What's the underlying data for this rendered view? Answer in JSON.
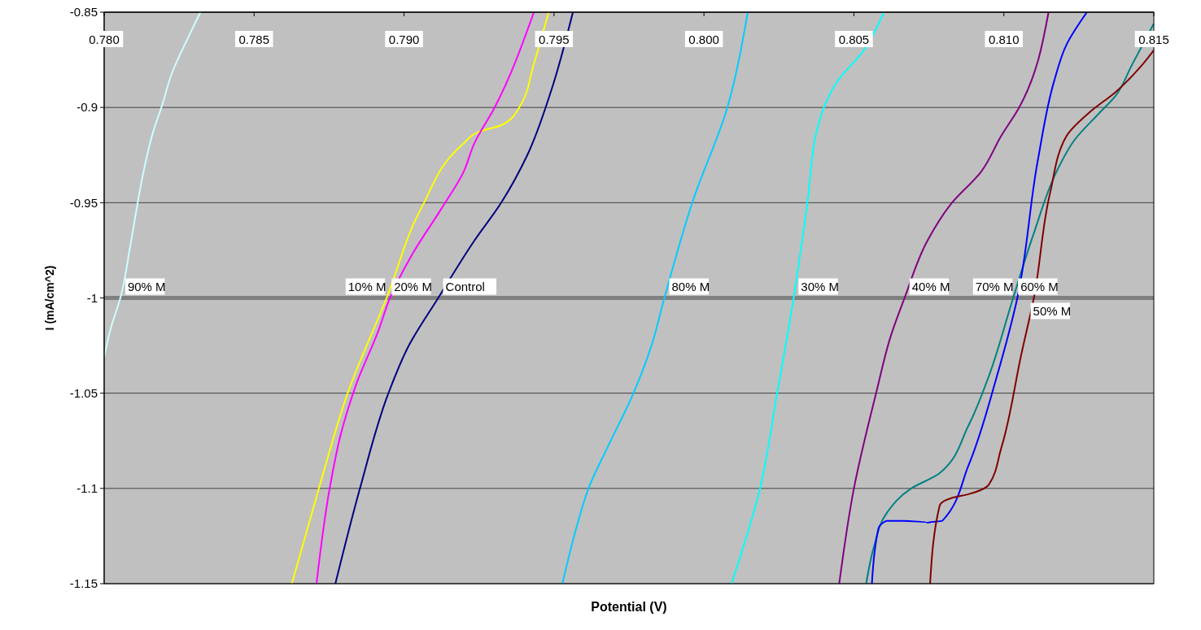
{
  "chart_data": {
    "type": "line",
    "xlabel": "Potential (V)",
    "ylabel": "I (mA/cm^2)",
    "xlim": [
      0.78,
      0.815
    ],
    "xticks": [
      {
        "value": 0.78,
        "label": "0.780"
      },
      {
        "value": 0.785,
        "label": "0.785"
      },
      {
        "value": 0.79,
        "label": "0.790"
      },
      {
        "value": 0.795,
        "label": "0.795"
      },
      {
        "value": 0.8,
        "label": "0.800"
      },
      {
        "value": 0.805,
        "label": "0.805"
      },
      {
        "value": 0.81,
        "label": "0.810"
      },
      {
        "value": 0.815,
        "label": "0.815"
      }
    ],
    "ylim": [
      -1.15,
      -0.85
    ],
    "yticks": [
      -1.15,
      -1.1,
      -1.05,
      -1,
      -0.95,
      -0.9,
      -0.85
    ],
    "grid": "y",
    "marker": "none",
    "line_style": "solid",
    "ref_lines": [
      {
        "axis": "y",
        "value": -1,
        "color": "#808080"
      }
    ],
    "series": [
      {
        "name": "90% M",
        "color": "#ccffff",
        "x": [
          0.78,
          0.78022,
          0.78054,
          0.7809,
          0.78131,
          0.78163,
          0.78191,
          0.78226,
          0.78281,
          0.78321
        ],
        "values": [
          -1.031,
          -1.016,
          -1.0,
          -0.97,
          -0.934,
          -0.913,
          -0.9,
          -0.882,
          -0.863,
          -0.85
        ]
      },
      {
        "name": "20% M",
        "color": "#ffff00",
        "x": [
          0.78626,
          0.78716,
          0.78812,
          0.78942,
          0.79057,
          0.79198,
          0.79247,
          0.79329,
          0.79384,
          0.79433,
          0.79482
        ],
        "values": [
          -1.15,
          -1.1,
          -1.05,
          -1.0,
          -0.953,
          -0.919,
          -0.913,
          -0.909,
          -0.9,
          -0.877,
          -0.85
        ]
      },
      {
        "name": "10% M",
        "color": "#ff00ff",
        "x": [
          0.78708,
          0.78752,
          0.7879,
          0.78839,
          0.78915,
          0.78953,
          0.79024,
          0.79125,
          0.79198,
          0.79234,
          0.79302,
          0.79433
        ],
        "values": [
          -1.15,
          -1.1,
          -1.071,
          -1.046,
          -1.017,
          -1.0,
          -0.978,
          -0.953,
          -0.934,
          -0.919,
          -0.9,
          -0.85
        ]
      },
      {
        "name": "Control",
        "color": "#000080",
        "x": [
          0.78771,
          0.78853,
          0.78948,
          0.79016,
          0.79114,
          0.79234,
          0.79324,
          0.79411,
          0.79493,
          0.79563
        ],
        "values": [
          -1.15,
          -1.1,
          -1.05,
          -1.025,
          -1.0,
          -0.97,
          -0.95,
          -0.925,
          -0.89,
          -0.85
        ]
      },
      {
        "name": "80% M",
        "color": "#00ccff",
        "x": [
          0.79528,
          0.79574,
          0.79615,
          0.79683,
          0.79765,
          0.79825,
          0.79868,
          0.79961,
          0.80078,
          0.80146
        ],
        "values": [
          -1.15,
          -1.121,
          -1.1,
          -1.077,
          -1.05,
          -1.025,
          -1.0,
          -0.95,
          -0.9,
          -0.85
        ]
      },
      {
        "name": "30% M",
        "color": "#00ffff",
        "x": [
          0.80092,
          0.80187,
          0.80244,
          0.80299,
          0.80345,
          0.80378,
          0.80405,
          0.80446,
          0.80528,
          0.806
        ],
        "values": [
          -1.15,
          -1.1,
          -1.05,
          -1.0,
          -0.95,
          -0.911,
          -0.898,
          -0.886,
          -0.871,
          -0.85
        ]
      },
      {
        "name": "40% M",
        "color": "#800080",
        "x": [
          0.80451,
          0.805,
          0.80574,
          0.80623,
          0.80669,
          0.80745,
          0.80827,
          0.80923,
          0.80991,
          0.81051,
          0.81149
        ],
        "values": [
          -1.15,
          -1.1,
          -1.05,
          -1.02,
          -1.0,
          -0.97,
          -0.95,
          -0.934,
          -0.915,
          -0.9,
          -0.85
        ]
      },
      {
        "name": "60% M",
        "color": "#008080",
        "x": [
          0.80541,
          0.80568,
          0.80609,
          0.80691,
          0.80786,
          0.80882,
          0.8095,
          0.81031,
          0.811,
          0.81181,
          0.81236,
          0.81318,
          0.81372,
          0.81426,
          0.815
        ],
        "values": [
          -1.15,
          -1.13,
          -1.113,
          -1.1,
          -1.092,
          -1.067,
          -1.041,
          -1.0,
          -0.966,
          -0.932,
          -0.917,
          -0.903,
          -0.894,
          -0.878,
          -0.856
        ]
      },
      {
        "name": "70% M",
        "color": "#0000ff",
        "x": [
          0.8056,
          0.80582,
          0.80609,
          0.80664,
          0.80745,
          0.80795,
          0.80882,
          0.80977,
          0.81045,
          0.81113,
          0.81168,
          0.81209,
          0.81277
        ],
        "values": [
          -1.15,
          -1.121,
          -1.117,
          -1.117,
          -1.118,
          -1.117,
          -1.088,
          -1.041,
          -1.0,
          -0.928,
          -0.886,
          -0.867,
          -0.85
        ]
      },
      {
        "name": "50% M",
        "color": "#800000",
        "x": [
          0.80754,
          0.80786,
          0.80827,
          0.80882,
          0.8095,
          0.80991,
          0.81059,
          0.811,
          0.81154,
          0.81209,
          0.8129,
          0.81372,
          0.81454,
          0.815
        ],
        "values": [
          -1.15,
          -1.109,
          -1.105,
          -1.103,
          -1.098,
          -1.079,
          -1.029,
          -1.0,
          -0.945,
          -0.915,
          -0.902,
          -0.892,
          -0.879,
          -0.87
        ]
      }
    ]
  }
}
